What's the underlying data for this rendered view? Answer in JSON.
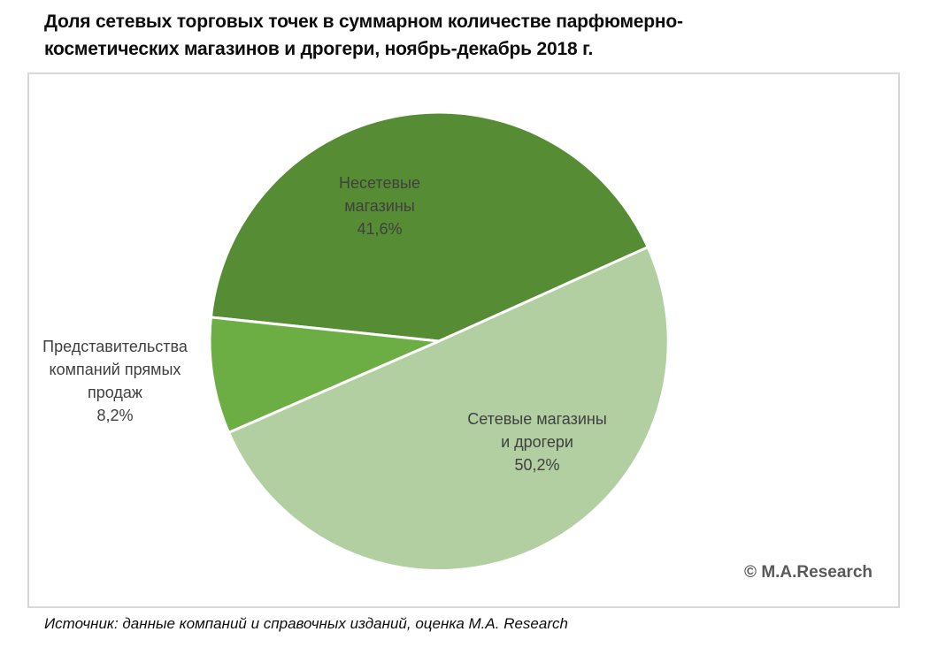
{
  "title_lines": [
    "Доля сетевых торговых точек в суммарном количестве парфюмерно-",
    "косметических магазинов и дрогери, ноябрь-декабрь 2018 г."
  ],
  "chart_data": {
    "type": "pie",
    "title": "Доля сетевых торговых точек в суммарном количестве парфюмерно-косметических магазинов и дрогери, ноябрь-декабрь 2018 г.",
    "unit": "%",
    "direction": "clockwise",
    "start_angle_deg": 276,
    "legend": "none",
    "labels": "on-slices",
    "slices": [
      {
        "label": "Несетевые магазины",
        "value": 41.6,
        "percent_display": "41,6%",
        "color": "#568C33",
        "label_lines": [
          "Несетевые",
          "магазины",
          "41,6%"
        ]
      },
      {
        "label": "Сетевые магазины и дрогери",
        "value": 50.2,
        "percent_display": "50,2%",
        "color": "#B1CFA1",
        "label_lines": [
          "Сетевые магазины",
          "и дрогери",
          "50,2%"
        ]
      },
      {
        "label": "Представительства компаний прямых продаж",
        "value": 8.2,
        "percent_display": "8,2%",
        "color": "#6CAE44",
        "label_lines": [
          "Представительства",
          "компаний прямых",
          "продаж",
          "8,2%"
        ]
      }
    ]
  },
  "watermark": "© M.A.Research",
  "source": "Источник: данные компаний и справочных изданий, оценка М.А. Research"
}
